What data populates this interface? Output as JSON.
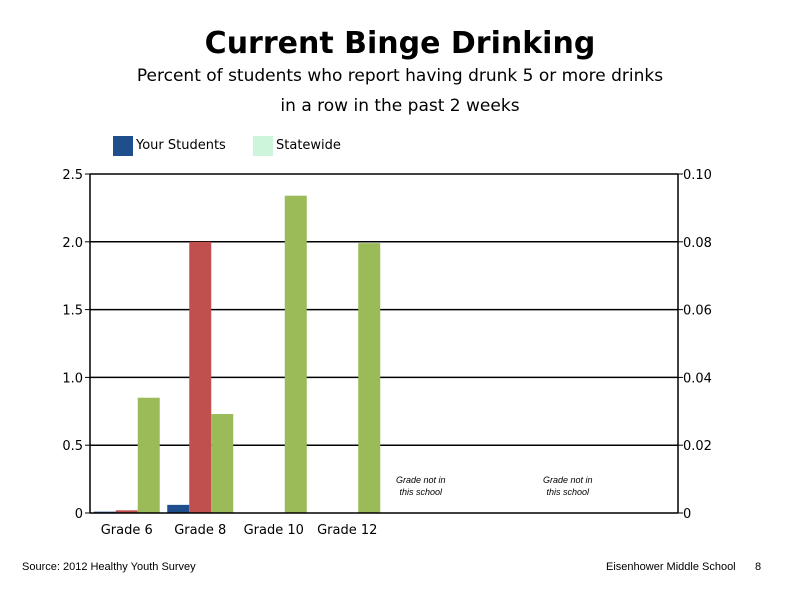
{
  "chart_data": {
    "type": "bar",
    "title": "Current Binge Drinking",
    "subtitle_lines": [
      "Percent of students who report having drunk 5 or more drinks",
      "in a row in the past 2 weeks"
    ],
    "categories": [
      "Grade 6",
      "Grade 8",
      "Grade 10",
      "Grade 12"
    ],
    "series": [
      {
        "name": "Your Students",
        "color": "#1F4E8C",
        "values": [
          0.01,
          0.06,
          null,
          null
        ]
      },
      {
        "name": "",
        "color": "#C0504D",
        "values": [
          0.02,
          2.0,
          null,
          null
        ]
      },
      {
        "name": "Statewide",
        "color": "#9BBB59",
        "values": [
          0.85,
          0.73,
          2.34,
          1.99
        ]
      }
    ],
    "legend": [
      {
        "name": "Your Students",
        "color": "#1F4E8C"
      },
      {
        "name": "Statewide",
        "color": "#CCF5DC"
      }
    ],
    "ylim": [
      0,
      2.5
    ],
    "yticks": [
      "0",
      "0.5",
      "1.0",
      "1.5",
      "2.0",
      "2.5"
    ],
    "y2lim": [
      0,
      0.1
    ],
    "y2ticks": [
      "0",
      "0.02",
      "0.04",
      "0.06",
      "0.08",
      "0.10"
    ],
    "legend_position": "top-left",
    "grid": true,
    "annotations": [
      {
        "slot": 4,
        "lines": [
          "Grade not in",
          "this school"
        ]
      },
      {
        "slot": 6,
        "lines": [
          "Grade not in",
          "this school"
        ]
      }
    ]
  },
  "footer": {
    "source": "Source: 2012 Healthy Youth Survey",
    "school": "Eisenhower Middle  School",
    "page": "8"
  }
}
